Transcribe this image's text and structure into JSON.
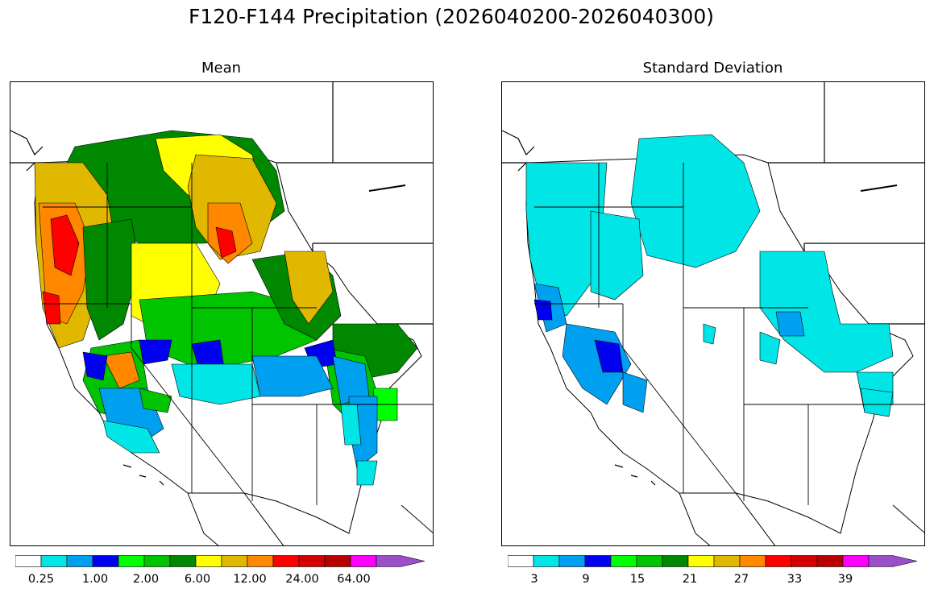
{
  "title": "F120-F144 Precipitation (2026040200-2026040300)",
  "panels": [
    {
      "title": "Mean",
      "legend_colors": [
        "#ffffff",
        "#00e5e5",
        "#00a0f0",
        "#0000f0",
        "#00ff00",
        "#00c400",
        "#008800",
        "#ffff00",
        "#e0b800",
        "#ff8800",
        "#ff0000",
        "#d40000",
        "#b80000",
        "#ff00ff",
        "#9a50c8"
      ],
      "tick_labels": [
        "0.25",
        "1.00",
        "2.00",
        "6.00",
        "12.00",
        "24.00",
        "64.00"
      ]
    },
    {
      "title": "Standard Deviation",
      "legend_colors": [
        "#ffffff",
        "#00e5e5",
        "#00a0f0",
        "#0000f0",
        "#00ff00",
        "#00c400",
        "#008800",
        "#ffff00",
        "#e0b800",
        "#ff8800",
        "#ff0000",
        "#d40000",
        "#b80000",
        "#ff00ff",
        "#9a50c8"
      ],
      "tick_labels": [
        "3",
        "9",
        "15",
        "21",
        "27",
        "33",
        "39"
      ]
    }
  ]
}
